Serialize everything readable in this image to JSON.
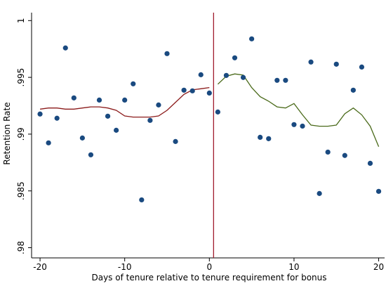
{
  "chart_data": {
    "type": "scatter",
    "x_label": "Days of tenure relative to tenure requirement for bonus",
    "y_label": "Retention Rate",
    "xlim": [
      -21,
      20.7
    ],
    "ylim": [
      0.9791,
      1.0007
    ],
    "xticks": [
      -20,
      -10,
      0,
      10,
      20
    ],
    "yticks": [
      {
        "value": 0.98,
        "label": ".98"
      },
      {
        "value": 0.985,
        "label": ".985"
      },
      {
        "value": 0.99,
        "label": ".99"
      },
      {
        "value": 0.995,
        "label": ".995"
      },
      1
    ],
    "color": "#1a4a80",
    "x": [
      -20,
      -19,
      -18,
      -17,
      -16,
      -15,
      -14,
      -13,
      -12,
      -11,
      -10,
      -9,
      -8,
      -7,
      -6,
      -5,
      -4,
      -3,
      -2,
      -1,
      0,
      1,
      2,
      3,
      4,
      5,
      6,
      7,
      8,
      9,
      10,
      11,
      12,
      13,
      14,
      15,
      16,
      17,
      18,
      19,
      20
    ],
    "values": [
      0.99177,
      0.98923,
      0.9914,
      0.99759,
      0.99319,
      0.98966,
      0.98818,
      0.993,
      0.99158,
      0.99034,
      0.993,
      0.99443,
      0.98421,
      0.99121,
      0.99257,
      0.99709,
      0.98935,
      0.99387,
      0.99381,
      0.99523,
      0.99362,
      0.99195,
      0.99517,
      0.99672,
      0.99499,
      0.99839,
      0.98972,
      0.9896,
      0.99474,
      0.99474,
      0.99084,
      0.99071,
      0.99635,
      0.98477,
      0.98842,
      0.99616,
      0.98812,
      0.99387,
      0.99591,
      0.98743,
      0.98496
    ],
    "lines": [
      {
        "color": "#8b1a1a",
        "x": [
          -20,
          -19,
          -18,
          -17,
          -16,
          -15,
          -14,
          -13,
          -12,
          -11,
          -10,
          -9,
          -8,
          -7,
          -6,
          -5,
          -4,
          -3,
          -2,
          -1,
          0
        ],
        "values": [
          0.9922,
          0.9923,
          0.9923,
          0.9922,
          0.9922,
          0.9923,
          0.9924,
          0.9924,
          0.9923,
          0.9921,
          0.9916,
          0.9915,
          0.9915,
          0.9915,
          0.9916,
          0.9921,
          0.9928,
          0.9935,
          0.9939,
          0.994,
          0.9941
        ]
      },
      {
        "color": "#4a6a1a",
        "x": [
          1,
          2,
          3,
          4,
          5,
          6,
          7,
          8,
          9,
          10,
          11,
          12,
          13,
          14,
          15,
          16,
          17,
          18,
          19,
          20
        ],
        "values": [
          0.9944,
          0.9951,
          0.9953,
          0.9952,
          0.9941,
          0.9933,
          0.9929,
          0.9924,
          0.9923,
          0.9927,
          0.9917,
          0.9908,
          0.9907,
          0.9907,
          0.9908,
          0.9918,
          0.9923,
          0.9917,
          0.9907,
          0.9889
        ]
      }
    ],
    "cutoff": 0.5,
    "cutoff_color": "#a01c2c"
  }
}
